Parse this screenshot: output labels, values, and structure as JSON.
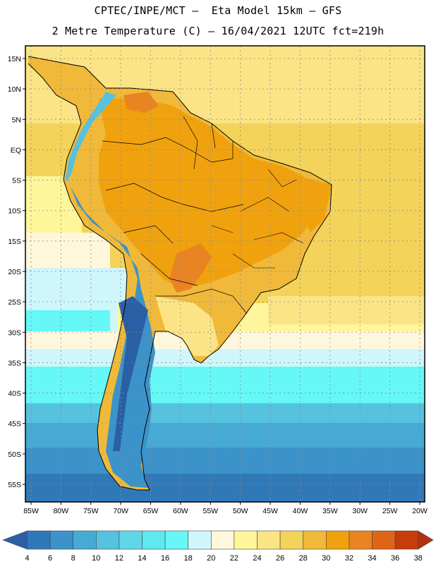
{
  "header": {
    "line1": "CPTEC/INPE/MCT –  Eta Model 15km – GFS",
    "line2": "2 Metre Temperature (C) – 16/04/2021 12UTC fct=219h"
  },
  "map": {
    "lat_labels": [
      "15N",
      "10N",
      "5N",
      "EQ",
      "5S",
      "10S",
      "15S",
      "20S",
      "25S",
      "30S",
      "35S",
      "40S",
      "45S",
      "50S",
      "55S"
    ],
    "lon_labels": [
      "85W",
      "80W",
      "75W",
      "70W",
      "65W",
      "60W",
      "55W",
      "50W",
      "45W",
      "40W",
      "35W",
      "30W",
      "25W",
      "20W"
    ],
    "lon_range": [
      -86,
      -20
    ],
    "lat_range": [
      -59,
      16
    ]
  },
  "colorbar": {
    "labels": [
      "4",
      "6",
      "8",
      "10",
      "12",
      "14",
      "16",
      "18",
      "20",
      "22",
      "24",
      "26",
      "28",
      "30",
      "32",
      "34",
      "36",
      "38"
    ],
    "colors": [
      "#2a5fa6",
      "#3079b9",
      "#3b93c9",
      "#47aad4",
      "#55c2df",
      "#5fd7e8",
      "#5ee9ef",
      "#66f7f7",
      "#cff6fb",
      "#fff7db",
      "#fff59a",
      "#fbe485",
      "#f3d35a",
      "#f0b93a",
      "#f0a20e",
      "#e98423",
      "#e06418",
      "#c63c0b",
      "#b13210"
    ]
  }
}
